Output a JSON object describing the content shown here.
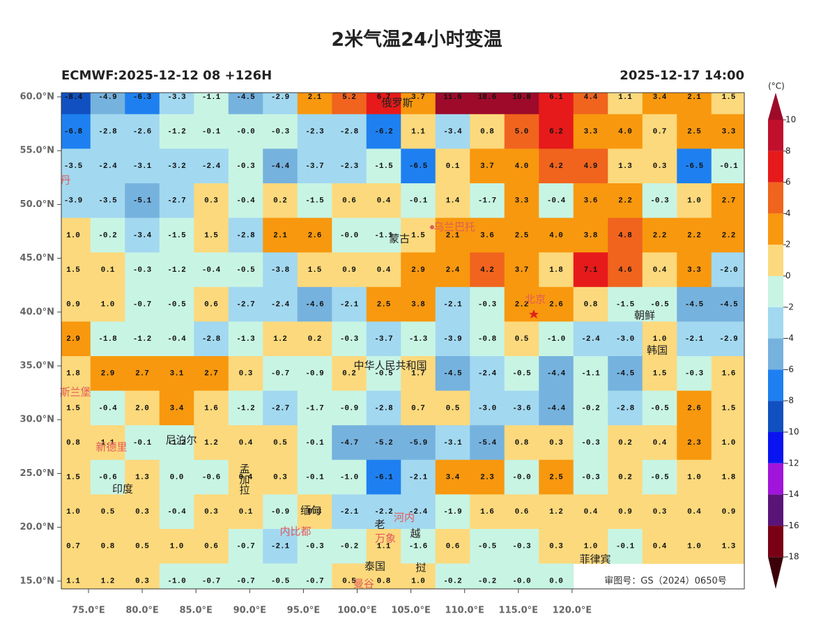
{
  "title": "2米气温24小时变温",
  "model_run": "ECMWF:2025-12-12 08 +126H",
  "valid_time": "2025-12-17 14:00",
  "colorbar": {
    "unit": "(°C)",
    "levels": [
      10,
      8,
      6,
      4,
      2,
      0,
      -2,
      -4,
      -6,
      -8,
      -10,
      -12,
      -14,
      -16,
      -18
    ],
    "colors": [
      "#9e0a2a",
      "#c0102e",
      "#e61a1a",
      "#f0641e",
      "#f8980e",
      "#fcd97c",
      "#c8f4e4",
      "#a2d8f0",
      "#76b2de",
      "#1e80f0",
      "#1050c0",
      "#0a14f0",
      "#a014dc",
      "#5a1478",
      "#7a0016",
      "#3c0008"
    ]
  },
  "lat_labels": [
    "60.0°N",
    "55.0°N",
    "50.0°N",
    "45.0°N",
    "40.0°N",
    "35.0°N",
    "30.0°N",
    "25.0°N",
    "20.0°N",
    "15.0°N"
  ],
  "lon_labels": [
    "75.0°E",
    "80.0°E",
    "85.0°E",
    "90.0°E",
    "95.0°E",
    "100.0°E",
    "105.0°E",
    "110.0°E",
    "115.0°E",
    "120.0°E"
  ],
  "grid": {
    "rows": [
      [
        "-8.4",
        "-4.9",
        "-6.3",
        "-3.3",
        "-1.1",
        "-4.5",
        "-2.9",
        "2.1",
        "5.2",
        "6.7",
        "3.7",
        "11.6",
        "18.6",
        "10.8",
        "6.1",
        "4.4",
        "1.1",
        "3.4",
        "2.1",
        "1.5"
      ],
      [
        "-6.8",
        "-2.8",
        "-2.6",
        "-1.2",
        "-0.1",
        "-0.0",
        "-0.3",
        "-2.3",
        "-2.8",
        "-6.2",
        "1.1",
        "-3.4",
        "0.8",
        "5.0",
        "6.2",
        "3.3",
        "4.0",
        "0.7",
        "2.5",
        "3.3"
      ],
      [
        "-3.5",
        "-2.4",
        "-3.1",
        "-3.2",
        "-2.4",
        "-0.3",
        "-4.4",
        "-3.7",
        "-2.3",
        "-1.5",
        "-6.5",
        "0.1",
        "3.7",
        "4.0",
        "4.2",
        "4.9",
        "1.3",
        "0.3",
        "-6.5",
        "-0.1"
      ],
      [
        "-3.9",
        "-3.5",
        "-5.1",
        "-2.7",
        "0.3",
        "-0.4",
        "0.2",
        "-1.5",
        "0.6",
        "0.4",
        "-0.1",
        "1.4",
        "-1.7",
        "3.3",
        "-0.4",
        "3.6",
        "2.2",
        "-0.3",
        "1.0",
        "2.7"
      ],
      [
        "1.0",
        "-0.2",
        "-3.4",
        "-1.5",
        "1.5",
        "-2.8",
        "2.1",
        "2.6",
        "-0.0",
        "-1.1",
        "1.5",
        "2.1",
        "3.6",
        "2.5",
        "4.0",
        "3.8",
        "4.8",
        "2.2",
        "2.2",
        "2.2"
      ],
      [
        "1.5",
        "0.1",
        "-0.3",
        "-1.2",
        "-0.4",
        "-0.5",
        "-3.8",
        "1.5",
        "0.9",
        "0.4",
        "2.9",
        "2.4",
        "4.2",
        "3.7",
        "1.8",
        "7.1",
        "4.6",
        "0.4",
        "3.3",
        "-2.0"
      ],
      [
        "0.9",
        "1.0",
        "-0.7",
        "-0.5",
        "0.6",
        "-2.7",
        "-2.4",
        "-4.6",
        "-2.1",
        "2.5",
        "3.8",
        "-2.1",
        "-0.3",
        "2.2",
        "2.6",
        "0.8",
        "-1.5",
        "-0.5",
        "-4.5",
        "-4.5"
      ],
      [
        "2.9",
        "-1.8",
        "-1.2",
        "-0.4",
        "-2.8",
        "-1.3",
        "1.2",
        "0.2",
        "-0.3",
        "-3.7",
        "-1.3",
        "-3.9",
        "-0.8",
        "0.5",
        "-1.0",
        "-2.4",
        "-3.0",
        "1.0",
        "-2.1",
        "-2.9"
      ],
      [
        "1.8",
        "2.9",
        "2.7",
        "3.1",
        "2.7",
        "0.3",
        "-0.7",
        "-0.9",
        "0.2",
        "-0.5",
        "1.7",
        "-4.5",
        "-2.4",
        "-0.5",
        "-4.4",
        "-1.1",
        "-4.5",
        "1.5",
        "-0.3",
        "1.6"
      ],
      [
        "1.5",
        "-0.4",
        "2.0",
        "3.4",
        "1.6",
        "-1.2",
        "-2.7",
        "-1.7",
        "-0.9",
        "-2.8",
        "0.7",
        "0.5",
        "-3.0",
        "-3.6",
        "-4.4",
        "-0.2",
        "-2.8",
        "-0.5",
        "2.6",
        "1.5"
      ],
      [
        "0.8",
        "1.1",
        "-0.1",
        "-1.2",
        "1.2",
        "0.4",
        "0.5",
        "-0.1",
        "-4.7",
        "-5.2",
        "-5.9",
        "-3.1",
        "-5.4",
        "0.8",
        "0.3",
        "-0.3",
        "0.2",
        "0.4",
        "2.3",
        "1.0"
      ],
      [
        "1.5",
        "-0.6",
        "1.3",
        "0.0",
        "-0.6",
        "0.4",
        "0.3",
        "-0.1",
        "-1.0",
        "-6.1",
        "-2.1",
        "3.4",
        "2.3",
        "-0.0",
        "2.5",
        "-0.3",
        "0.2",
        "-0.5",
        "1.0",
        "1.8"
      ],
      [
        "1.0",
        "0.5",
        "0.3",
        "-0.4",
        "0.3",
        "0.1",
        "-0.9",
        "0.3",
        "-2.1",
        "-2.2",
        "-2.4",
        "-1.9",
        "1.6",
        "0.6",
        "1.2",
        "0.4",
        "0.9",
        "0.3",
        "0.4",
        "0.9"
      ],
      [
        "0.7",
        "0.8",
        "0.5",
        "1.0",
        "0.6",
        "-0.7",
        "-2.1",
        "-0.3",
        "-0.2",
        "1.1",
        "-1.6",
        "0.6",
        "-0.5",
        "-0.3",
        "0.3",
        "1.0",
        "-0.1",
        "0.4",
        "1.0",
        "1.3"
      ],
      [
        "1.1",
        "1.2",
        "0.3",
        "-1.0",
        "-0.7",
        "-0.7",
        "-0.5",
        "-0.7",
        "0.5",
        "0.8",
        "1.0",
        "-0.2",
        "-0.2",
        "-0.0",
        "0.0",
        null,
        null,
        null,
        null,
        null
      ]
    ]
  },
  "places": [
    "俄罗斯",
    "乌兰巴托",
    "蒙古",
    "北京",
    "朝鲜",
    "韩国",
    "中华人民共和国",
    "尼泊尔",
    "新德里",
    "印度",
    "孟加拉",
    "缅甸",
    "内比都",
    "河内",
    "老",
    "越",
    "挝",
    "万象",
    "泰国",
    "曼谷",
    "菲律宾",
    "斯兰堡",
    "丹"
  ],
  "approval": "审图号：GS（2024）0650号"
}
